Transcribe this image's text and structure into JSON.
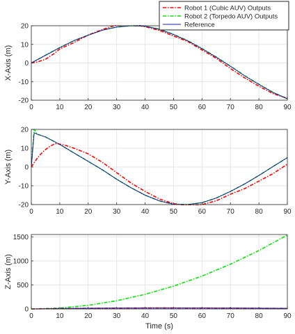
{
  "figure": {
    "legend": {
      "placement": "top-right",
      "entries": [
        {
          "label": "Robot 1 (Cubic AUV) Outputs",
          "color": "#ff0000",
          "style": "dash-dot"
        },
        {
          "label": "Robot 2 (Torpedo AUV) Outputs",
          "color": "#00e600",
          "style": "dash-dot"
        },
        {
          "label": "Reference",
          "color": "#2020a0",
          "style": "solid"
        }
      ]
    },
    "colors": {
      "robot1": "#ff0000",
      "robot2": "#00e600",
      "reference": "#2020a0",
      "grid": "#e6e6e6",
      "axes": "#262626"
    }
  },
  "chart_data": [
    {
      "type": "line",
      "title": "",
      "xlabel": "",
      "ylabel": "X-Axis (m)",
      "xlim": [
        0,
        90
      ],
      "ylim": [
        -20,
        20
      ],
      "xticks": [
        "0",
        "10",
        "20",
        "30",
        "40",
        "50",
        "60",
        "70",
        "80",
        "90"
      ],
      "yticks": [
        "-20",
        "-10",
        "0",
        "10",
        "20"
      ],
      "grid": true,
      "series": [
        {
          "name": "Robot 1 (Cubic AUV) Outputs",
          "x": [
            0,
            2,
            5,
            8,
            10,
            15,
            20,
            25,
            30,
            35,
            40,
            45,
            50,
            55,
            60,
            65,
            70,
            75,
            80,
            85,
            90
          ],
          "y": [
            0,
            0.5,
            2,
            5,
            7.5,
            11,
            15,
            18,
            20.5,
            21,
            19.5,
            17.5,
            14.5,
            11.5,
            7,
            2.5,
            -3,
            -8,
            -12.5,
            -16.5,
            -19
          ]
        },
        {
          "name": "Robot 2 (Torpedo AUV) Outputs",
          "x": [
            0,
            5,
            10,
            15,
            20,
            25,
            30,
            35,
            40,
            45,
            50,
            55,
            60,
            65,
            70,
            75,
            80,
            85,
            90
          ],
          "y": [
            0,
            4.2,
            8.3,
            12,
            15,
            17.7,
            19.3,
            20,
            19.8,
            18.2,
            15.4,
            12,
            7.8,
            3.2,
            -1.7,
            -6.8,
            -11.4,
            -15.8,
            -19.2
          ]
        },
        {
          "name": "Reference",
          "x": [
            0,
            5,
            10,
            15,
            20,
            25,
            30,
            35,
            40,
            45,
            50,
            55,
            60,
            65,
            70,
            75,
            80,
            85,
            90
          ],
          "y": [
            0,
            4.1,
            8.2,
            12,
            14.9,
            17.6,
            19.3,
            20,
            19.7,
            18.1,
            15.3,
            11.9,
            7.7,
            3.1,
            -1.8,
            -6.9,
            -11.5,
            -15.9,
            -19.3
          ]
        }
      ]
    },
    {
      "type": "line",
      "title": "",
      "xlabel": "",
      "ylabel": "Y-Axis (m)",
      "xlim": [
        0,
        90
      ],
      "ylim": [
        -20,
        20
      ],
      "xticks": [
        "0",
        "10",
        "20",
        "30",
        "40",
        "50",
        "60",
        "70",
        "80",
        "90"
      ],
      "yticks": [
        "-20",
        "-10",
        "0",
        "10",
        "20"
      ],
      "grid": true,
      "series": [
        {
          "name": "Robot 1 (Cubic AUV) Outputs",
          "x": [
            0,
            2,
            4,
            6,
            8,
            9,
            12,
            15,
            20,
            25,
            30,
            35,
            40,
            45,
            50,
            55,
            60,
            65,
            70,
            75,
            80,
            85,
            90
          ],
          "y": [
            0,
            4.5,
            8,
            10.5,
            12.2,
            12.5,
            11.5,
            10,
            7,
            2.5,
            -3,
            -8.5,
            -13,
            -17,
            -19.5,
            -20.5,
            -20,
            -18,
            -14.5,
            -11.5,
            -7.5,
            -3.5,
            1.5
          ]
        },
        {
          "name": "Robot 2 (Torpedo AUV) Outputs",
          "x": [
            0,
            0.5,
            1,
            1.5,
            2,
            5,
            10,
            15,
            20,
            25,
            30,
            35,
            40,
            45,
            50,
            55,
            60,
            65,
            70,
            75,
            80,
            85,
            90
          ],
          "y": [
            0,
            10,
            20,
            19,
            17.5,
            16,
            12,
            7.5,
            3,
            -1.5,
            -6.5,
            -11,
            -15,
            -18,
            -19.8,
            -20,
            -19,
            -16.5,
            -13,
            -9,
            -4.5,
            0.3,
            5
          ]
        },
        {
          "name": "Reference",
          "x": [
            0,
            0.5,
            1,
            1.5,
            2,
            5,
            10,
            15,
            20,
            25,
            30,
            35,
            40,
            45,
            50,
            55,
            60,
            65,
            70,
            75,
            80,
            85,
            90
          ],
          "y": [
            0,
            9,
            18,
            18,
            17.5,
            16,
            12,
            7.5,
            3,
            -1.5,
            -6.5,
            -11,
            -15,
            -18,
            -19.8,
            -20,
            -19,
            -16.5,
            -13,
            -9,
            -4.5,
            0.3,
            5
          ]
        }
      ]
    },
    {
      "type": "line",
      "title": "",
      "xlabel": "Time (s)",
      "ylabel": "Z-Axis (m)",
      "xlim": [
        0,
        90
      ],
      "ylim": [
        0,
        1550
      ],
      "xticks": [
        "0",
        "10",
        "20",
        "30",
        "40",
        "50",
        "60",
        "70",
        "80",
        "90"
      ],
      "yticks": [
        "0",
        "500",
        "1000",
        "1500"
      ],
      "grid": true,
      "series": [
        {
          "name": "Robot 1 (Cubic AUV) Outputs",
          "x": [
            0,
            10,
            20,
            30,
            40,
            50,
            60,
            70,
            80,
            90
          ],
          "y": [
            0,
            8,
            14,
            18,
            20,
            20,
            19,
            17,
            15,
            12
          ]
        },
        {
          "name": "Robot 2 (Torpedo AUV) Outputs",
          "x": [
            0,
            10,
            20,
            30,
            40,
            50,
            60,
            70,
            80,
            90
          ],
          "y": [
            0,
            19,
            76,
            171,
            304,
            475,
            684,
            931,
            1216,
            1540
          ]
        },
        {
          "name": "Reference",
          "x": [
            0,
            10,
            20,
            30,
            40,
            50,
            60,
            70,
            80,
            90
          ],
          "y": [
            0,
            9,
            15,
            19,
            21,
            21,
            20,
            18,
            16,
            13
          ]
        }
      ]
    }
  ]
}
